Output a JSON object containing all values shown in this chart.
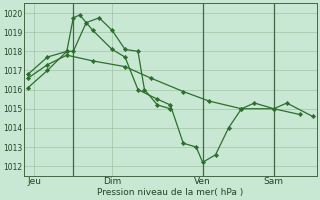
{
  "background_color": "#c8e8d4",
  "grid_color": "#99bb99",
  "line_color": "#2d6e2d",
  "marker_color": "#2d6e2d",
  "xlabel": "Pression niveau de la mer( hPa )",
  "ylim": [
    1011.5,
    1020.5
  ],
  "yticks": [
    1012,
    1013,
    1014,
    1015,
    1016,
    1017,
    1018,
    1019,
    1020
  ],
  "day_labels": [
    "Jeu",
    "Dim",
    "Ven",
    "Sam"
  ],
  "day_positions": [
    0.5,
    6.5,
    13.5,
    19.0
  ],
  "vline_positions": [
    3.5,
    13.5,
    19.0
  ],
  "series1_x": [
    0.0,
    1.5,
    3.0,
    3.5,
    4.5,
    5.5,
    6.5,
    7.5,
    8.5,
    9.0,
    10.0,
    11.0
  ],
  "series1_y": [
    1016.8,
    1017.7,
    1018.0,
    1018.0,
    1019.5,
    1019.75,
    1019.1,
    1018.1,
    1018.0,
    1016.0,
    1015.2,
    1015.0
  ],
  "series2_x": [
    0.0,
    1.5,
    3.0,
    3.5,
    4.0,
    5.0,
    6.5,
    7.5,
    8.5,
    10.0,
    11.0,
    12.0,
    13.0,
    13.5,
    14.5,
    15.5,
    16.5,
    17.5,
    19.0,
    20.0,
    22.0
  ],
  "series2_y": [
    1016.1,
    1017.0,
    1018.0,
    1019.75,
    1019.9,
    1019.1,
    1018.1,
    1017.7,
    1016.0,
    1015.5,
    1015.2,
    1013.2,
    1013.0,
    1012.2,
    1012.6,
    1014.0,
    1015.0,
    1015.3,
    1015.0,
    1015.3,
    1014.6
  ],
  "series3_x": [
    0.0,
    1.5,
    3.0,
    5.0,
    7.5,
    9.5,
    12.0,
    14.0,
    16.5,
    19.0,
    21.0
  ],
  "series3_y": [
    1016.6,
    1017.3,
    1017.8,
    1017.5,
    1017.2,
    1016.6,
    1015.9,
    1015.4,
    1015.0,
    1015.0,
    1014.7
  ]
}
